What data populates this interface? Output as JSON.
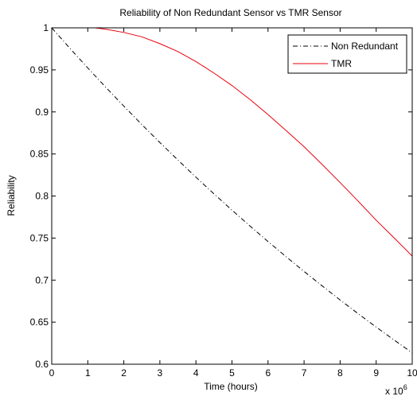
{
  "chart_data": {
    "type": "line",
    "title": "Reliability of Non Redundant Sensor vs TMR Sensor",
    "xlabel": "Time (hours)",
    "ylabel": "Reliability",
    "x_multiplier_label": "x 10",
    "x_multiplier_exponent": "6",
    "xlim": [
      0,
      10
    ],
    "ylim": [
      0.6,
      1.0
    ],
    "x_ticks": [
      "0",
      "1",
      "2",
      "3",
      "4",
      "5",
      "6",
      "7",
      "8",
      "9",
      "10"
    ],
    "y_ticks": [
      "0.6",
      "0.65",
      "0.7",
      "0.75",
      "0.8",
      "0.85",
      "0.9",
      "0.95",
      "1"
    ],
    "grid": false,
    "legend_position": "top-right",
    "series": [
      {
        "name": "Non Redundant",
        "color": "#000000",
        "style": "dash-dot",
        "x": [
          0,
          0.5,
          1,
          1.5,
          2,
          2.5,
          3,
          3.5,
          4,
          4.5,
          5,
          5.5,
          6,
          6.5,
          7,
          7.5,
          8,
          8.5,
          9,
          9.5,
          10
        ],
        "y": [
          1.0,
          0.9758,
          0.9523,
          0.9293,
          0.9069,
          0.885,
          0.8636,
          0.8428,
          0.8224,
          0.8026,
          0.7832,
          0.7643,
          0.7459,
          0.7279,
          0.7103,
          0.6932,
          0.6764,
          0.6601,
          0.6442,
          0.6287,
          0.6135
        ]
      },
      {
        "name": "TMR",
        "color": "#e8000b",
        "style": "solid",
        "x": [
          1.2,
          1.5,
          2,
          2.5,
          3,
          3.5,
          4,
          4.5,
          5,
          5.5,
          6,
          6.5,
          7,
          7.5,
          8,
          8.5,
          9,
          9.5,
          10
        ],
        "y": [
          1.0,
          0.9983,
          0.9945,
          0.9893,
          0.9812,
          0.9718,
          0.9599,
          0.9462,
          0.9314,
          0.9148,
          0.8968,
          0.8779,
          0.8586,
          0.8376,
          0.816,
          0.7939,
          0.7712,
          0.7501,
          0.7286
        ]
      }
    ]
  }
}
